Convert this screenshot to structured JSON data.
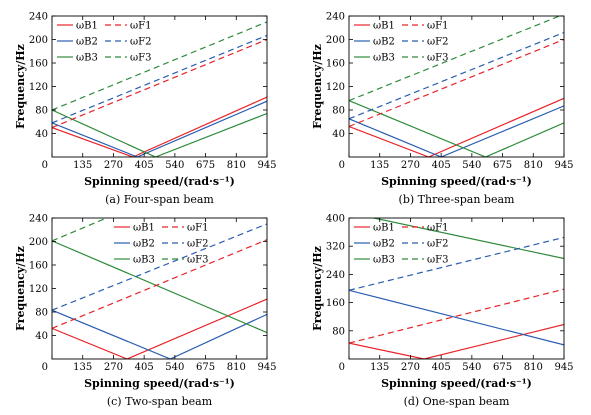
{
  "colors": {
    "B1": "#e8242a",
    "B2": "#2a5db0",
    "B3": "#2e8b3a",
    "axis": "#000000"
  },
  "chart_data": [
    {
      "type": "line",
      "caption": "(a) Four-span beam",
      "xlabel": "Spinning speed/(rad·s⁻¹)",
      "ylabel": "Frequency/Hz",
      "xlim": [
        0,
        945
      ],
      "ylim": [
        0,
        240
      ],
      "xticks": [
        "0",
        "135",
        "270",
        "405",
        "540",
        "675",
        "810",
        "945"
      ],
      "yticks": [
        "40",
        "80",
        "120",
        "160",
        "200",
        "240"
      ],
      "legend": {
        "placement": "top-left",
        "labels": [
          "ωB1",
          "ωF1",
          "ωB2",
          "ωF2",
          "ωB3",
          "ωF3"
        ]
      },
      "series": [
        {
          "name": "ωB1",
          "style": "solid",
          "color": "#e8242a",
          "x": [
            0,
            355,
            945
          ],
          "y": [
            50,
            0,
            102
          ]
        },
        {
          "name": "ωB2",
          "style": "solid",
          "color": "#2a5db0",
          "x": [
            0,
            375,
            945
          ],
          "y": [
            58,
            0,
            95
          ]
        },
        {
          "name": "ωB3",
          "style": "solid",
          "color": "#2e8b3a",
          "x": [
            0,
            455,
            945
          ],
          "y": [
            80,
            0,
            74
          ]
        },
        {
          "name": "ωF1",
          "style": "dashed",
          "color": "#e8242a",
          "x": [
            0,
            945
          ],
          "y": [
            50,
            200
          ]
        },
        {
          "name": "ωF2",
          "style": "dashed",
          "color": "#2a5db0",
          "x": [
            0,
            945
          ],
          "y": [
            58,
            207
          ]
        },
        {
          "name": "ωF3",
          "style": "dashed",
          "color": "#2e8b3a",
          "x": [
            0,
            945
          ],
          "y": [
            80,
            230
          ]
        }
      ]
    },
    {
      "type": "line",
      "caption": "(b) Three-span beam",
      "xlabel": "Spinning speed/(rad·s⁻¹)",
      "ylabel": "Frequency/Hz",
      "xlim": [
        0,
        945
      ],
      "ylim": [
        0,
        240
      ],
      "xticks": [
        "0",
        "135",
        "270",
        "405",
        "540",
        "675",
        "810",
        "945"
      ],
      "yticks": [
        "40",
        "80",
        "120",
        "160",
        "200",
        "240"
      ],
      "legend": {
        "placement": "top-left",
        "labels": [
          "ωB1",
          "ωF1",
          "ωB2",
          "ωF2",
          "ωB3",
          "ωF3"
        ]
      },
      "series": [
        {
          "name": "ωB1",
          "style": "solid",
          "color": "#e8242a",
          "x": [
            0,
            350,
            945
          ],
          "y": [
            52,
            0,
            100
          ]
        },
        {
          "name": "ωB2",
          "style": "solid",
          "color": "#2a5db0",
          "x": [
            0,
            405,
            945
          ],
          "y": [
            65,
            0,
            87
          ]
        },
        {
          "name": "ωB3",
          "style": "solid",
          "color": "#2e8b3a",
          "x": [
            0,
            600,
            945
          ],
          "y": [
            96,
            0,
            58
          ]
        },
        {
          "name": "ωF1",
          "style": "dashed",
          "color": "#e8242a",
          "x": [
            0,
            945
          ],
          "y": [
            52,
            200
          ]
        },
        {
          "name": "ωF2",
          "style": "dashed",
          "color": "#2a5db0",
          "x": [
            0,
            945
          ],
          "y": [
            65,
            212
          ]
        },
        {
          "name": "ωF3",
          "style": "dashed",
          "color": "#2e8b3a",
          "x": [
            0,
            945
          ],
          "y": [
            96,
            243
          ]
        }
      ]
    },
    {
      "type": "line",
      "caption": "(c) Two-span beam",
      "xlabel": "Spinning speed/(rad·s⁻¹)",
      "ylabel": "Frequency/Hz",
      "xlim": [
        0,
        945
      ],
      "ylim": [
        0,
        240
      ],
      "xticks": [
        "0",
        "135",
        "270",
        "405",
        "540",
        "675",
        "810",
        "945"
      ],
      "yticks": [
        "40",
        "80",
        "120",
        "160",
        "200",
        "240"
      ],
      "legend": {
        "placement": "top-right",
        "labels": [
          "ωB1",
          "ωF1",
          "ωB2",
          "ωF2",
          "ωB3",
          "ωF3"
        ]
      },
      "series": [
        {
          "name": "ωB1",
          "style": "solid",
          "color": "#e8242a",
          "x": [
            0,
            330,
            945
          ],
          "y": [
            52,
            0,
            102
          ]
        },
        {
          "name": "ωB2",
          "style": "solid",
          "color": "#2a5db0",
          "x": [
            0,
            520,
            945
          ],
          "y": [
            83,
            0,
            76
          ]
        },
        {
          "name": "ωB3",
          "style": "solid",
          "color": "#2e8b3a",
          "x": [
            0,
            945
          ],
          "y": [
            201,
            45
          ]
        },
        {
          "name": "ωF1",
          "style": "dashed",
          "color": "#e8242a",
          "x": [
            0,
            945
          ],
          "y": [
            52,
            203
          ]
        },
        {
          "name": "ωF2",
          "style": "dashed",
          "color": "#2a5db0",
          "x": [
            0,
            945
          ],
          "y": [
            83,
            230
          ]
        },
        {
          "name": "ωF3",
          "style": "dashed",
          "color": "#2e8b3a",
          "x": [
            0,
            240
          ],
          "y": [
            201,
            240
          ]
        }
      ]
    },
    {
      "type": "line",
      "caption": "(d) One-span beam",
      "xlabel": "Spinning speed/(rad·s⁻¹)",
      "ylabel": "Frequency/Hz",
      "xlim": [
        0,
        945
      ],
      "ylim": [
        0,
        400
      ],
      "xticks": [
        "0",
        "135",
        "270",
        "405",
        "540",
        "675",
        "810",
        "945"
      ],
      "yticks": [
        "80",
        "160",
        "240",
        "320",
        "400"
      ],
      "legend": {
        "placement": "top-left",
        "labels": [
          "ωB1",
          "ωF1",
          "ωB2",
          "ωF2",
          "ωB3",
          "ωF3"
        ]
      },
      "series": [
        {
          "name": "ωB1",
          "style": "solid",
          "color": "#e8242a",
          "x": [
            0,
            330,
            945
          ],
          "y": [
            45,
            0,
            98
          ]
        },
        {
          "name": "ωB2",
          "style": "solid",
          "color": "#2a5db0",
          "x": [
            0,
            945
          ],
          "y": [
            195,
            40
          ]
        },
        {
          "name": "ωB3",
          "style": "solid",
          "color": "#2e8b3a",
          "x": [
            0,
            945
          ],
          "y": [
            415,
            285
          ]
        },
        {
          "name": "ωF1",
          "style": "dashed",
          "color": "#e8242a",
          "x": [
            0,
            945
          ],
          "y": [
            45,
            198
          ]
        },
        {
          "name": "ωF2",
          "style": "dashed",
          "color": "#2a5db0",
          "x": [
            0,
            945
          ],
          "y": [
            195,
            345
          ]
        }
      ]
    }
  ]
}
